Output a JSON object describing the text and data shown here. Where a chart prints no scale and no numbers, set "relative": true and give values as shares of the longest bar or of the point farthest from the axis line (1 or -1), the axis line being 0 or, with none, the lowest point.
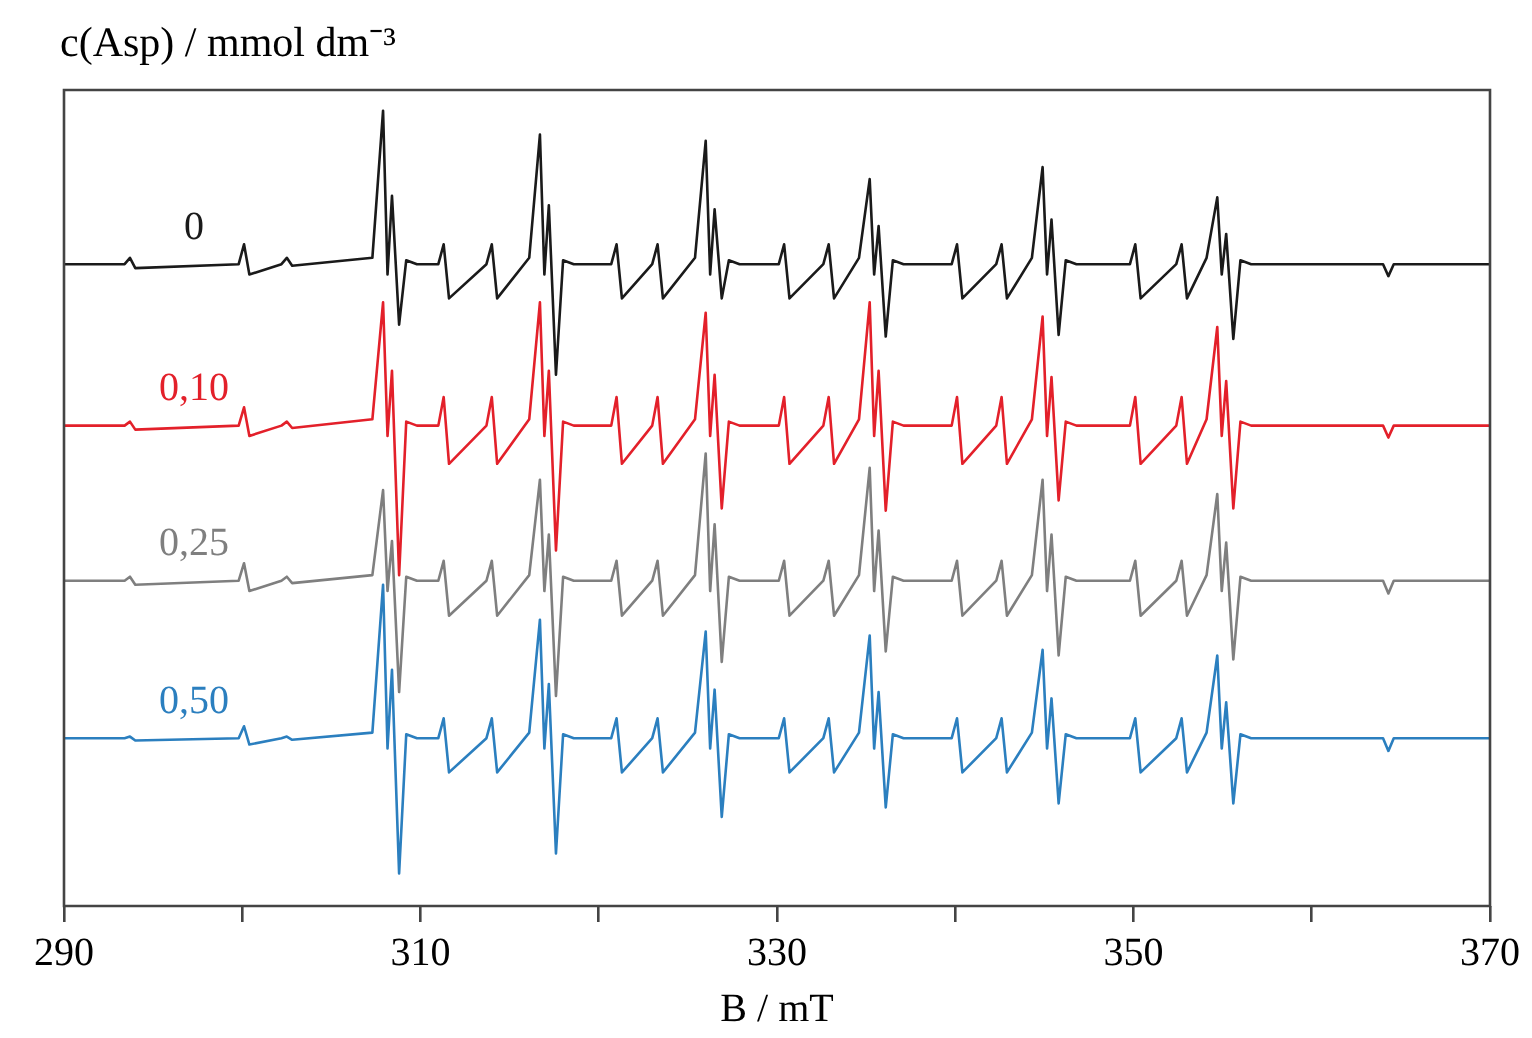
{
  "chart_data": {
    "type": "line",
    "relative": true,
    "legend_title": "c(Asp) / mmol dm⁻³",
    "xlabel": "B / mT",
    "xlim": [
      290,
      370
    ],
    "xticks": [
      290,
      {
        "value": 300,
        "label": null
      },
      310,
      {
        "value": 320,
        "label": null
      },
      330,
      {
        "value": 340,
        "label": null
      },
      350,
      {
        "value": 360,
        "label": null
      },
      370
    ],
    "tick_labels": "x",
    "x": [
      290,
      293.4,
      293.7,
      294,
      299.8,
      300.1,
      300.4,
      302.2,
      302.5,
      302.8,
      307.3,
      307.9,
      308.15,
      308.4,
      308.8,
      309.2,
      309.8,
      311,
      311.3,
      311.6,
      313.7,
      314,
      314.3,
      316.1,
      316.7,
      316.95,
      317.2,
      317.6,
      318,
      318.6,
      320.7,
      321,
      321.3,
      323,
      323.3,
      323.6,
      325.4,
      326,
      326.25,
      326.5,
      326.9,
      327.3,
      327.9,
      330.1,
      330.4,
      330.7,
      332.6,
      332.9,
      333.2,
      334.6,
      335.2,
      335.45,
      335.7,
      336.1,
      336.5,
      337.1,
      339.8,
      340.1,
      340.4,
      342.3,
      342.6,
      342.9,
      344.3,
      344.9,
      345.15,
      345.4,
      345.8,
      346.2,
      346.8,
      349.8,
      350.1,
      350.4,
      352.4,
      352.7,
      353,
      354.1,
      354.7,
      354.95,
      355.2,
      355.6,
      356,
      356.6,
      364,
      364.3,
      364.6,
      370
    ],
    "series": [
      {
        "name": "0",
        "color": "#1a1a1a",
        "values": [
          0.807,
          0.807,
          0.815,
          0.802,
          0.807,
          0.832,
          0.794,
          0.807,
          0.815,
          0.805,
          0.815,
          1.0,
          0.794,
          0.893,
          0.731,
          0.812,
          0.807,
          0.807,
          0.832,
          0.764,
          0.807,
          0.832,
          0.764,
          0.815,
          0.97,
          0.794,
          0.881,
          0.668,
          0.812,
          0.807,
          0.807,
          0.832,
          0.764,
          0.807,
          0.832,
          0.764,
          0.815,
          0.962,
          0.794,
          0.876,
          0.764,
          0.812,
          0.807,
          0.807,
          0.832,
          0.764,
          0.807,
          0.832,
          0.764,
          0.815,
          0.914,
          0.794,
          0.855,
          0.716,
          0.812,
          0.807,
          0.807,
          0.832,
          0.764,
          0.807,
          0.832,
          0.764,
          0.815,
          0.929,
          0.794,
          0.863,
          0.718,
          0.812,
          0.807,
          0.807,
          0.832,
          0.764,
          0.807,
          0.832,
          0.764,
          0.815,
          0.891,
          0.794,
          0.845,
          0.713,
          0.812,
          0.807,
          0.807,
          0.792,
          0.807,
          0.807
        ]
      },
      {
        "name": "0,10",
        "color": "#e3202a",
        "values": [
          0.604,
          0.604,
          0.609,
          0.599,
          0.604,
          0.627,
          0.591,
          0.604,
          0.609,
          0.601,
          0.612,
          0.759,
          0.591,
          0.673,
          0.416,
          0.609,
          0.604,
          0.604,
          0.64,
          0.556,
          0.604,
          0.64,
          0.556,
          0.612,
          0.759,
          0.591,
          0.673,
          0.447,
          0.609,
          0.604,
          0.604,
          0.64,
          0.556,
          0.604,
          0.64,
          0.556,
          0.612,
          0.746,
          0.591,
          0.668,
          0.5,
          0.609,
          0.604,
          0.604,
          0.64,
          0.556,
          0.604,
          0.64,
          0.556,
          0.612,
          0.759,
          0.591,
          0.673,
          0.497,
          0.609,
          0.604,
          0.604,
          0.64,
          0.556,
          0.604,
          0.64,
          0.556,
          0.612,
          0.741,
          0.591,
          0.665,
          0.51,
          0.609,
          0.604,
          0.604,
          0.64,
          0.556,
          0.604,
          0.64,
          0.556,
          0.612,
          0.728,
          0.591,
          0.66,
          0.5,
          0.609,
          0.604,
          0.604,
          0.589,
          0.604,
          0.604
        ]
      },
      {
        "name": "0,25",
        "color": "#7f7f7f",
        "values": [
          0.409,
          0.409,
          0.414,
          0.404,
          0.409,
          0.431,
          0.396,
          0.409,
          0.414,
          0.406,
          0.416,
          0.523,
          0.396,
          0.459,
          0.269,
          0.414,
          0.409,
          0.409,
          0.434,
          0.365,
          0.409,
          0.434,
          0.365,
          0.416,
          0.536,
          0.396,
          0.467,
          0.264,
          0.414,
          0.409,
          0.409,
          0.434,
          0.365,
          0.409,
          0.434,
          0.365,
          0.416,
          0.569,
          0.396,
          0.48,
          0.307,
          0.414,
          0.409,
          0.409,
          0.434,
          0.365,
          0.409,
          0.434,
          0.365,
          0.416,
          0.551,
          0.396,
          0.472,
          0.32,
          0.414,
          0.409,
          0.409,
          0.434,
          0.365,
          0.409,
          0.434,
          0.365,
          0.416,
          0.536,
          0.396,
          0.467,
          0.315,
          0.414,
          0.409,
          0.409,
          0.434,
          0.365,
          0.409,
          0.434,
          0.365,
          0.416,
          0.518,
          0.396,
          0.457,
          0.31,
          0.414,
          0.409,
          0.409,
          0.393,
          0.409,
          0.409
        ]
      },
      {
        "name": "0,50",
        "color": "#2b7fbf",
        "values": [
          0.211,
          0.211,
          0.213,
          0.208,
          0.211,
          0.226,
          0.203,
          0.211,
          0.213,
          0.209,
          0.218,
          0.404,
          0.198,
          0.297,
          0.041,
          0.216,
          0.211,
          0.211,
          0.236,
          0.168,
          0.211,
          0.236,
          0.168,
          0.218,
          0.36,
          0.198,
          0.279,
          0.066,
          0.216,
          0.211,
          0.211,
          0.236,
          0.168,
          0.211,
          0.236,
          0.168,
          0.218,
          0.345,
          0.198,
          0.272,
          0.112,
          0.216,
          0.211,
          0.211,
          0.236,
          0.168,
          0.211,
          0.236,
          0.168,
          0.218,
          0.34,
          0.198,
          0.269,
          0.124,
          0.216,
          0.211,
          0.211,
          0.236,
          0.168,
          0.211,
          0.236,
          0.168,
          0.218,
          0.322,
          0.198,
          0.261,
          0.129,
          0.216,
          0.211,
          0.211,
          0.236,
          0.168,
          0.211,
          0.236,
          0.168,
          0.218,
          0.315,
          0.198,
          0.256,
          0.129,
          0.216,
          0.211,
          0.211,
          0.195,
          0.211,
          0.211
        ]
      }
    ]
  }
}
